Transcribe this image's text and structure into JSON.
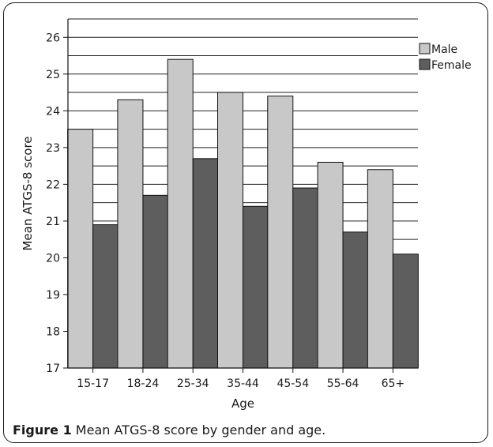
{
  "chart_data": {
    "type": "bar",
    "title": "",
    "xlabel": "Age",
    "ylabel": "Mean ATGS-8 score",
    "categories": [
      "15-17",
      "18-24",
      "25-34",
      "35-44",
      "45-54",
      "55-64",
      "65+"
    ],
    "series": [
      {
        "name": "Male",
        "color": "#c8c8c8",
        "values": [
          23.5,
          24.3,
          25.4,
          24.5,
          24.4,
          22.6,
          22.4
        ]
      },
      {
        "name": "Female",
        "color": "#5e5e5e",
        "values": [
          20.9,
          21.7,
          22.7,
          21.4,
          21.9,
          20.7,
          20.1
        ]
      }
    ],
    "ylim": [
      17,
      26.5
    ],
    "yticks": [
      17,
      18,
      19,
      20,
      21,
      22,
      23,
      24,
      25,
      26
    ],
    "grid": true,
    "legend_position": "top-right"
  },
  "caption": {
    "label": "Figure 1",
    "text": " Mean ATGS-8 score by gender and age."
  }
}
